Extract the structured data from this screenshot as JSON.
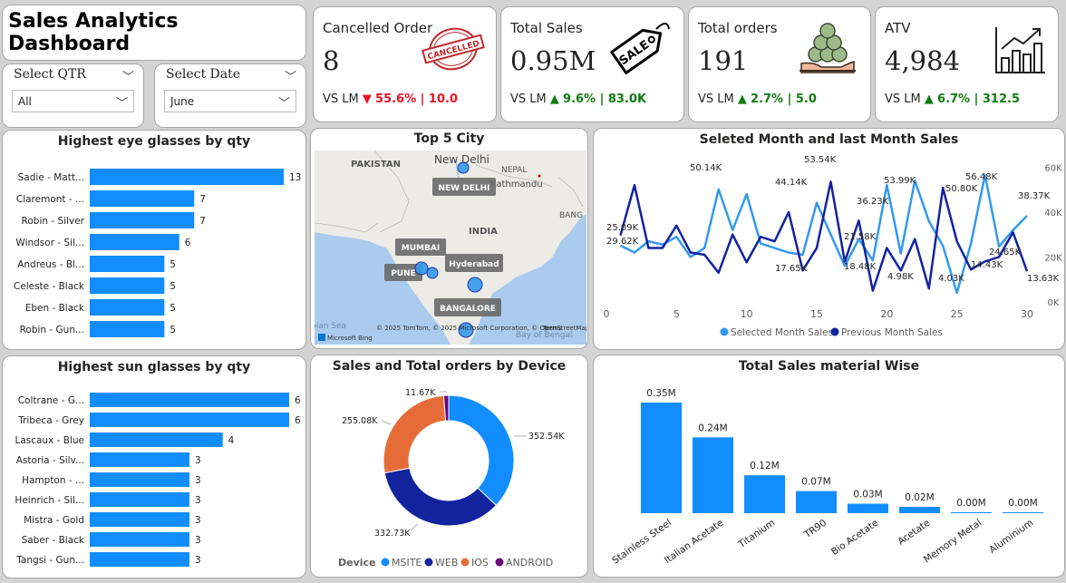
{
  "title": "Sales Analytics Dashboard",
  "slicers": {
    "qtr": {
      "label": "Select QTR",
      "value": "All"
    },
    "date": {
      "label": "Select Date",
      "value": "June"
    }
  },
  "kpis": [
    {
      "label": "Cancelled Order",
      "value": "8",
      "vs": "VS LM",
      "arrow": "▼",
      "change": "55.6% | 10.0",
      "color": "#e81123",
      "icon": "cancelled-stamp-icon",
      "stamp_text": "CANCELLED"
    },
    {
      "label": "Total Sales",
      "value": "0.95M",
      "vs": "VS LM",
      "arrow": "▲",
      "change": "9.6% | 83.0K",
      "color": "#107c10",
      "icon": "sale-tag-icon",
      "tag_text": "SALE"
    },
    {
      "label": "Total orders",
      "value": "191",
      "vs": "VS LM",
      "arrow": "▲",
      "change": "2.7% | 5.0",
      "color": "#107c10",
      "icon": "coins-hand-icon"
    },
    {
      "label": "ATV",
      "value": "4,984",
      "vs": "VS LM",
      "arrow": "▲",
      "change": "6.7% | 312.5",
      "color": "#107c10",
      "icon": "bar-growth-icon"
    }
  ],
  "colors": {
    "accent": "#118dff",
    "navy": "#12239e",
    "orange": "#e66c37",
    "purple": "#6b007b",
    "light": "#3399ee"
  },
  "eye_chart": {
    "title": "Highest eye glasses by qty",
    "categories": [
      "Sadie - Matt...",
      "Claremont - ...",
      "Robin - Silver",
      "Windsor - Sil...",
      "Andreus - Bl...",
      "Celeste - Black",
      "Eben - Black",
      "Robin - Gun..."
    ],
    "values": [
      13,
      7,
      7,
      6,
      5,
      5,
      5,
      5
    ]
  },
  "sun_chart": {
    "title": "Highest sun glasses by qty",
    "categories": [
      "Coltrane - G...",
      "Tribeca - Grey",
      "Lascaux - Blue",
      "Astoria - Silv...",
      "Hampton - ...",
      "Heinrich - Sil...",
      "Mistra - Gold",
      "Saber - Black",
      "Tangsi - Gun..."
    ],
    "values": [
      6,
      6,
      4,
      3,
      3,
      3,
      3,
      3,
      3
    ]
  },
  "map": {
    "title": "Top 5 City",
    "regions": [
      "PAKISTAN",
      "NEPAL",
      "INDIA",
      "BANG",
      "bian Sea",
      "Bay of Bengal",
      "New Delhi",
      "Kathmandu"
    ],
    "cities": [
      "NEW DELHI",
      "MUMBAI",
      "PUNE",
      "Hyderabad",
      "BANGALORE"
    ],
    "attribution": "© 2025 TomTom, © 2025 Microsoft Corporation, © OpenStreetMap",
    "terms": "Terms",
    "brand": "Microsoft Bing"
  },
  "line_chart": {
    "title": "Seleted Month and last Month Sales",
    "x_ticks": [
      "0",
      "5",
      "10",
      "15",
      "20",
      "25",
      "30"
    ],
    "y_ticks": [
      "0K",
      "20K",
      "40K",
      "60K"
    ],
    "ylim": [
      0,
      65000
    ],
    "xlim": [
      0,
      30
    ],
    "legend": [
      "Selected Month Sales",
      "Previous Month Sales"
    ],
    "labels": [
      "25.09K",
      "29.62K",
      "50.14K",
      "44.14K",
      "53.54K",
      "36.23K",
      "53.99K",
      "50.80K",
      "56.48K",
      "38.37K",
      "21.58K",
      "18.48K",
      "17.65K",
      "4.98K",
      "4.03K",
      "14.43K",
      "24.65K",
      "13.63K"
    ],
    "x": [
      1,
      2,
      3,
      4,
      5,
      6,
      7,
      8,
      9,
      10,
      11,
      12,
      13,
      14,
      15,
      16,
      17,
      18,
      19,
      20,
      21,
      22,
      23,
      24,
      25,
      26,
      27,
      28,
      29,
      30
    ],
    "series": [
      {
        "name": "Selected Month Sales",
        "values": [
          25090,
          22000,
          27000,
          25500,
          29000,
          20000,
          24000,
          50140,
          32000,
          48000,
          26000,
          24000,
          22000,
          21000,
          44140,
          30000,
          16000,
          28000,
          18480,
          52000,
          21580,
          53990,
          36000,
          25000,
          4030,
          26000,
          56480,
          24650,
          32000,
          38370
        ]
      },
      {
        "name": "Previous Month Sales",
        "values": [
          29620,
          52000,
          24000,
          24000,
          34000,
          22000,
          21000,
          13000,
          30000,
          17650,
          29000,
          27000,
          40000,
          14000,
          24000,
          53540,
          18000,
          36230,
          4980,
          24000,
          14000,
          28000,
          6000,
          50800,
          27000,
          14430,
          18000,
          20000,
          31000,
          13630
        ]
      }
    ]
  },
  "device_chart": {
    "title": "Sales and Total orders by Device",
    "legend_title": "Device",
    "categories": [
      "MSITE",
      "WEB",
      "IOS",
      "ANDROID"
    ],
    "values": [
      352540,
      332730,
      255080,
      11670
    ],
    "labels": [
      "352.54K",
      "332.73K",
      "255.08K",
      "11.67K"
    ]
  },
  "material_chart": {
    "title": "Total Sales material Wise",
    "categories": [
      "Stainless Steel",
      "Italian Acetate",
      "Titanium",
      "TR90",
      "Bio Acetate",
      "Acetate",
      "Memory Metal",
      "Aluminium"
    ],
    "values": [
      0.35,
      0.24,
      0.12,
      0.07,
      0.03,
      0.02,
      0.003,
      0.002
    ],
    "labels": [
      "0.35M",
      "0.24M",
      "0.12M",
      "0.07M",
      "0.03M",
      "0.02M",
      "0.00M",
      "0.00M"
    ]
  }
}
